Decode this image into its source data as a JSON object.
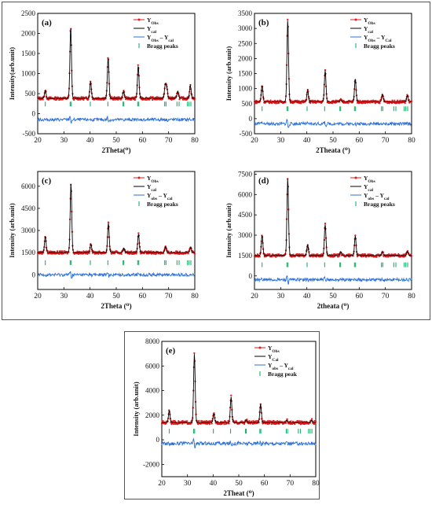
{
  "chart_data": [
    {
      "type": "line",
      "panel": "(a)",
      "xlabel": "2Theta(⁰)",
      "ylabel": "Intensity(arb.unit)",
      "xlim": [
        20,
        80
      ],
      "ylim": [
        -500,
        2500
      ],
      "xticks": [
        20,
        30,
        40,
        50,
        60,
        70,
        80
      ],
      "yticks": [
        -500,
        0,
        500,
        1000,
        1500,
        2000,
        2500
      ],
      "baseline": 380,
      "peaks": [
        [
          22.9,
          580
        ],
        [
          32.6,
          2160
        ],
        [
          40.2,
          800
        ],
        [
          46.9,
          1400
        ],
        [
          52.8,
          560
        ],
        [
          58.4,
          1200
        ],
        [
          68.7,
          700
        ],
        [
          69.3,
          640
        ],
        [
          73.5,
          560
        ],
        [
          78.3,
          700
        ]
      ],
      "diff_offset": -150,
      "bragg_y": 240,
      "bragg_positions": [
        22.9,
        32.4,
        32.8,
        40.1,
        46.8,
        52.6,
        52.9,
        58.2,
        58.6,
        68.5,
        69.0,
        73.2,
        74.0,
        77.2,
        77.8,
        78.5
      ],
      "legend": [
        "Y_Obs",
        "Y_cal",
        "Y_Obs – Y_cal",
        "Bragg peaks"
      ],
      "legend_position": "top-right",
      "legend_colors": [
        "#e41a1c",
        "#000000",
        "#2b6fd6",
        "#19b26b"
      ]
    },
    {
      "type": "line",
      "panel": "(b)",
      "xlabel": "2Theata (⁰)",
      "ylabel": "Intensity (arb.unit)",
      "xlim": [
        20,
        80
      ],
      "ylim": [
        -500,
        3500
      ],
      "xticks": [
        20,
        30,
        40,
        50,
        60,
        70,
        80
      ],
      "yticks": [
        -500,
        0,
        500,
        1000,
        1500,
        2000,
        2500,
        3000,
        3500
      ],
      "baseline": 560,
      "peaks": [
        [
          22.9,
          1100
        ],
        [
          32.7,
          3280
        ],
        [
          40.3,
          950
        ],
        [
          47.0,
          1600
        ],
        [
          52.9,
          620
        ],
        [
          58.5,
          1320
        ],
        [
          68.9,
          800
        ],
        [
          78.4,
          780
        ]
      ],
      "diff_offset": -170,
      "bragg_y": 330,
      "bragg_positions": [
        22.9,
        32.4,
        32.8,
        40.1,
        46.8,
        52.6,
        52.9,
        58.2,
        58.6,
        68.5,
        69.0,
        73.2,
        74.0,
        77.2,
        77.8,
        78.5
      ],
      "legend": [
        "Y_Obs",
        "Y_cal",
        "Y_Obs – Y_Cal",
        "Bragg peaks"
      ],
      "legend_position": "top-right",
      "legend_colors": [
        "#e41a1c",
        "#000000",
        "#2b6fd6",
        "#19b26b"
      ]
    },
    {
      "type": "line",
      "panel": "(c)",
      "xlabel": "2Theta (⁰)",
      "ylabel": "Intensity (arb.unit)",
      "xlim": [
        20,
        80
      ],
      "ylim": [
        -1000,
        7000
      ],
      "xticks": [
        20,
        30,
        40,
        50,
        60,
        70,
        80
      ],
      "yticks": [
        0,
        1500,
        3000,
        4500,
        6000
      ],
      "baseline": 1500,
      "peaks": [
        [
          22.9,
          2600
        ],
        [
          32.7,
          6200
        ],
        [
          40.3,
          2100
        ],
        [
          47.0,
          3500
        ],
        [
          52.9,
          1800
        ],
        [
          58.5,
          2750
        ],
        [
          68.8,
          1900
        ],
        [
          78.4,
          1850
        ]
      ],
      "diff_offset": 0,
      "bragg_y": 820,
      "bragg_positions": [
        22.9,
        32.4,
        32.8,
        40.1,
        46.8,
        52.6,
        52.9,
        58.2,
        58.6,
        68.5,
        69.0,
        73.2,
        74.0,
        77.2,
        77.8,
        78.5
      ],
      "legend": [
        "Y_Obs",
        "Y_cal",
        "Y_obs – Y_cal",
        "Bragg peaks"
      ],
      "legend_position": "top-right",
      "legend_colors": [
        "#e41a1c",
        "#000000",
        "#2b6fd6",
        "#19b26b"
      ]
    },
    {
      "type": "line",
      "panel": "(d)",
      "xlabel": "2theata (⁰)",
      "ylabel": "Intensity (arb.unit)",
      "xlim": [
        20,
        80
      ],
      "ylim": [
        -1000,
        7700
      ],
      "xticks": [
        20,
        30,
        40,
        50,
        60,
        70,
        80
      ],
      "yticks": [
        0,
        1500,
        3000,
        4500,
        6000,
        7500
      ],
      "baseline": 1500,
      "peaks": [
        [
          22.9,
          3000
        ],
        [
          32.7,
          7200
        ],
        [
          40.3,
          2300
        ],
        [
          47.0,
          3800
        ],
        [
          52.9,
          1800
        ],
        [
          58.5,
          2950
        ],
        [
          68.8,
          1750
        ],
        [
          78.4,
          1800
        ]
      ],
      "diff_offset": -280,
      "bragg_y": 820,
      "bragg_positions": [
        22.9,
        32.4,
        32.8,
        40.1,
        46.8,
        52.6,
        52.9,
        58.2,
        58.6,
        68.5,
        69.0,
        73.2,
        74.0,
        77.2,
        77.8,
        78.5
      ],
      "legend": [
        "Y_Obs",
        "Y_cal",
        "Y_obs – Y_cal",
        "Bragg peaks"
      ],
      "legend_position": "top-right",
      "legend_colors": [
        "#e41a1c",
        "#000000",
        "#2b6fd6",
        "#19b26b"
      ]
    },
    {
      "type": "line",
      "panel": "(e)",
      "xlabel": "2Theat (⁰)",
      "ylabel": "Intensity (arb.unit)",
      "xlim": [
        20,
        80
      ],
      "ylim": [
        -3000,
        8000
      ],
      "xticks": [
        20,
        30,
        40,
        50,
        60,
        70,
        80
      ],
      "yticks": [
        -2000,
        0,
        2000,
        4000,
        6000,
        8000
      ],
      "baseline": 1400,
      "peaks": [
        [
          22.9,
          2400
        ],
        [
          32.7,
          7000
        ],
        [
          40.3,
          2100
        ],
        [
          47.0,
          3500
        ],
        [
          52.9,
          1600
        ],
        [
          58.5,
          2900
        ],
        [
          68.8,
          1600
        ],
        [
          78.4,
          1600
        ]
      ],
      "diff_offset": -300,
      "bragg_y": 700,
      "bragg_positions": [
        22.9,
        32.4,
        32.8,
        40.1,
        46.8,
        52.6,
        52.9,
        58.2,
        58.6,
        68.5,
        69.0,
        73.2,
        74.0,
        77.2,
        77.8,
        78.5
      ],
      "legend": [
        "Y_Obs",
        "Y_Cal",
        "Y_obs – Y_cal",
        "Bragg peak"
      ],
      "legend_position": "top-right",
      "legend_colors": [
        "#e41a1c",
        "#000000",
        "#2b6fd6",
        "#19b26b"
      ]
    }
  ]
}
